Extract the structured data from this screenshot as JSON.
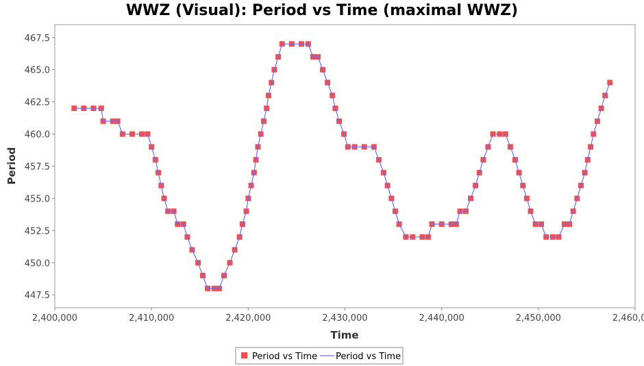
{
  "chart_data": {
    "type": "scatter",
    "title": "WWZ (Visual): Period vs Time (maximal WWZ)",
    "xlabel": "Time",
    "ylabel": "Period",
    "xlim": [
      2400000,
      2460000
    ],
    "ylim": [
      446.5,
      468.5
    ],
    "xticks": [
      2400000,
      2410000,
      2420000,
      2430000,
      2440000,
      2450000,
      2460000
    ],
    "xtick_labels": [
      "2,400,000",
      "2,410,000",
      "2,420,000",
      "2,430,000",
      "2,440,000",
      "2,450,000",
      "2,460,000"
    ],
    "yticks": [
      447.5,
      450.0,
      452.5,
      455.0,
      457.5,
      460.0,
      462.5,
      465.0,
      467.5
    ],
    "ytick_labels": [
      "447.5",
      "450.0",
      "452.5",
      "455.0",
      "457.5",
      "460.0",
      "462.5",
      "465.0",
      "467.5"
    ],
    "grid": false,
    "legend_position": "bottom",
    "colors": {
      "markers": "#f05050",
      "line": "#6b6bff"
    },
    "series": [
      {
        "name": "Period vs Time",
        "kind": "markers",
        "points": [
          [
            2402000,
            462
          ],
          [
            2403000,
            462
          ],
          [
            2404000,
            462
          ],
          [
            2404800,
            462
          ],
          [
            2405000,
            461
          ],
          [
            2406000,
            461
          ],
          [
            2406500,
            461
          ],
          [
            2407000,
            460
          ],
          [
            2408000,
            460
          ],
          [
            2409000,
            460
          ],
          [
            2409600,
            460
          ],
          [
            2410000,
            459
          ],
          [
            2410400,
            458
          ],
          [
            2410700,
            457
          ],
          [
            2411000,
            456
          ],
          [
            2411300,
            455
          ],
          [
            2411700,
            454
          ],
          [
            2412300,
            454
          ],
          [
            2412700,
            453
          ],
          [
            2413300,
            453
          ],
          [
            2413700,
            452
          ],
          [
            2414200,
            451
          ],
          [
            2414800,
            450
          ],
          [
            2415300,
            449
          ],
          [
            2415800,
            448
          ],
          [
            2416500,
            448
          ],
          [
            2417000,
            448
          ],
          [
            2417500,
            449
          ],
          [
            2418100,
            450
          ],
          [
            2418600,
            451
          ],
          [
            2419100,
            452
          ],
          [
            2419400,
            453
          ],
          [
            2419800,
            454
          ],
          [
            2420000,
            455
          ],
          [
            2420300,
            456
          ],
          [
            2420600,
            457
          ],
          [
            2420800,
            458
          ],
          [
            2421000,
            459
          ],
          [
            2421300,
            460
          ],
          [
            2421600,
            461
          ],
          [
            2421900,
            462
          ],
          [
            2422100,
            463
          ],
          [
            2422400,
            464
          ],
          [
            2422700,
            465
          ],
          [
            2423100,
            466
          ],
          [
            2423500,
            467
          ],
          [
            2424500,
            467
          ],
          [
            2425500,
            467
          ],
          [
            2426200,
            467
          ],
          [
            2426700,
            466
          ],
          [
            2427200,
            466
          ],
          [
            2427700,
            465
          ],
          [
            2428200,
            464
          ],
          [
            2428700,
            463
          ],
          [
            2429000,
            462
          ],
          [
            2429400,
            461
          ],
          [
            2429900,
            460
          ],
          [
            2430300,
            459
          ],
          [
            2431000,
            459
          ],
          [
            2432000,
            459
          ],
          [
            2433000,
            459
          ],
          [
            2433500,
            458
          ],
          [
            2434000,
            457
          ],
          [
            2434400,
            456
          ],
          [
            2434800,
            455
          ],
          [
            2435200,
            454
          ],
          [
            2435600,
            453
          ],
          [
            2436300,
            452
          ],
          [
            2437000,
            452
          ],
          [
            2438000,
            452
          ],
          [
            2438600,
            452
          ],
          [
            2439000,
            453
          ],
          [
            2440000,
            453
          ],
          [
            2441000,
            453
          ],
          [
            2441500,
            453
          ],
          [
            2441900,
            454
          ],
          [
            2442500,
            454
          ],
          [
            2443000,
            455
          ],
          [
            2443500,
            456
          ],
          [
            2443900,
            457
          ],
          [
            2444300,
            458
          ],
          [
            2444800,
            459
          ],
          [
            2445300,
            460
          ],
          [
            2446000,
            460
          ],
          [
            2446600,
            460
          ],
          [
            2447100,
            459
          ],
          [
            2447600,
            458
          ],
          [
            2448000,
            457
          ],
          [
            2448400,
            456
          ],
          [
            2448800,
            455
          ],
          [
            2449200,
            454
          ],
          [
            2449700,
            453
          ],
          [
            2450300,
            453
          ],
          [
            2450800,
            452
          ],
          [
            2451500,
            452
          ],
          [
            2452100,
            452
          ],
          [
            2452700,
            453
          ],
          [
            2453200,
            453
          ],
          [
            2453600,
            454
          ],
          [
            2454000,
            455
          ],
          [
            2454400,
            456
          ],
          [
            2454800,
            457
          ],
          [
            2455100,
            458
          ],
          [
            2455400,
            459
          ],
          [
            2455700,
            460
          ],
          [
            2456100,
            461
          ],
          [
            2456500,
            462
          ],
          [
            2456900,
            463
          ],
          [
            2457400,
            464
          ]
        ]
      },
      {
        "name": "Period vs Time",
        "kind": "line"
      }
    ]
  }
}
